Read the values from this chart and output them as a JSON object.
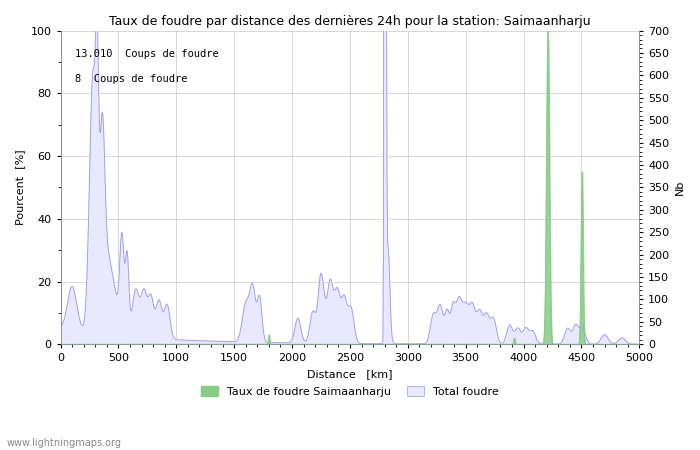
{
  "title": "Taux de foudre par distance des dernières 24h pour la station: Saimaanharju",
  "xlabel": "Distance   [km]",
  "ylabel_left": "Pourcent  [%]",
  "ylabel_right": "Nb",
  "annotation_line1": "13.010  Coups de foudre",
  "annotation_line2": "8  Coups de foudre",
  "xlim": [
    0,
    5000
  ],
  "ylim_left": [
    0,
    100
  ],
  "ylim_right": [
    0,
    700
  ],
  "xticks": [
    0,
    500,
    1000,
    1500,
    2000,
    2500,
    3000,
    3500,
    4000,
    4500,
    5000
  ],
  "yticks_left": [
    0,
    20,
    40,
    60,
    80,
    100
  ],
  "yticks_right": [
    0,
    50,
    100,
    150,
    200,
    250,
    300,
    350,
    400,
    450,
    500,
    550,
    600,
    650,
    700
  ],
  "legend_label_green": "Taux de foudre Saimaanharju",
  "legend_label_blue": "Total foudre",
  "watermark": "www.lightningmaps.org",
  "bg_color": "#ffffff",
  "plot_bg_color": "#ffffff",
  "grid_color": "#c8c8c8",
  "line_color": "#9999ee",
  "fill_color": "#e8e8ff",
  "green_color": "#88cc88",
  "title_fontsize": 9,
  "label_fontsize": 8,
  "tick_fontsize": 8
}
